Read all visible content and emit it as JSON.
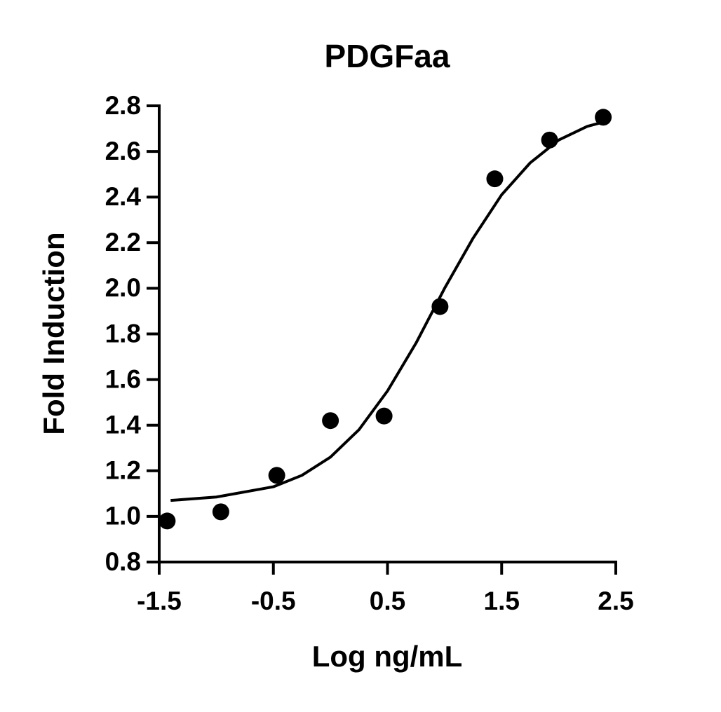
{
  "chart_data": {
    "type": "scatter",
    "title": "PDGFaa",
    "x_label": "Log ng/mL",
    "y_label": "Fold Induction",
    "xlim": [
      -1.5,
      2.5
    ],
    "xticks": [
      -1.5,
      -0.5,
      0.5,
      1.5,
      2.5
    ],
    "ylim": [
      0.8,
      2.8
    ],
    "yticks": [
      0.8,
      {
        "value": 1.0,
        "label": "1.0"
      },
      1.2,
      1.4,
      1.6,
      1.8,
      {
        "value": 2.0,
        "label": "2.0"
      },
      2.2,
      2.4,
      2.6,
      2.8
    ],
    "grid": false,
    "series": [
      {
        "type": "scatter",
        "color": "#000000",
        "x": [
          -1.43,
          -0.96,
          -0.47,
          0.0,
          0.47,
          0.96,
          1.44,
          1.92,
          2.39
        ],
        "values": [
          0.98,
          1.02,
          1.18,
          1.42,
          1.44,
          1.92,
          2.48,
          2.65,
          2.75
        ]
      },
      {
        "type": "line",
        "color": "#000000",
        "x": [
          -1.4,
          -1.0,
          -0.5,
          -0.25,
          0.0,
          0.25,
          0.5,
          0.75,
          1.0,
          1.25,
          1.5,
          1.75,
          2.0,
          2.25,
          2.4
        ],
        "values": [
          1.07,
          1.085,
          1.13,
          1.18,
          1.26,
          1.38,
          1.55,
          1.76,
          2.0,
          2.22,
          2.41,
          2.55,
          2.65,
          2.71,
          2.73
        ]
      }
    ]
  }
}
